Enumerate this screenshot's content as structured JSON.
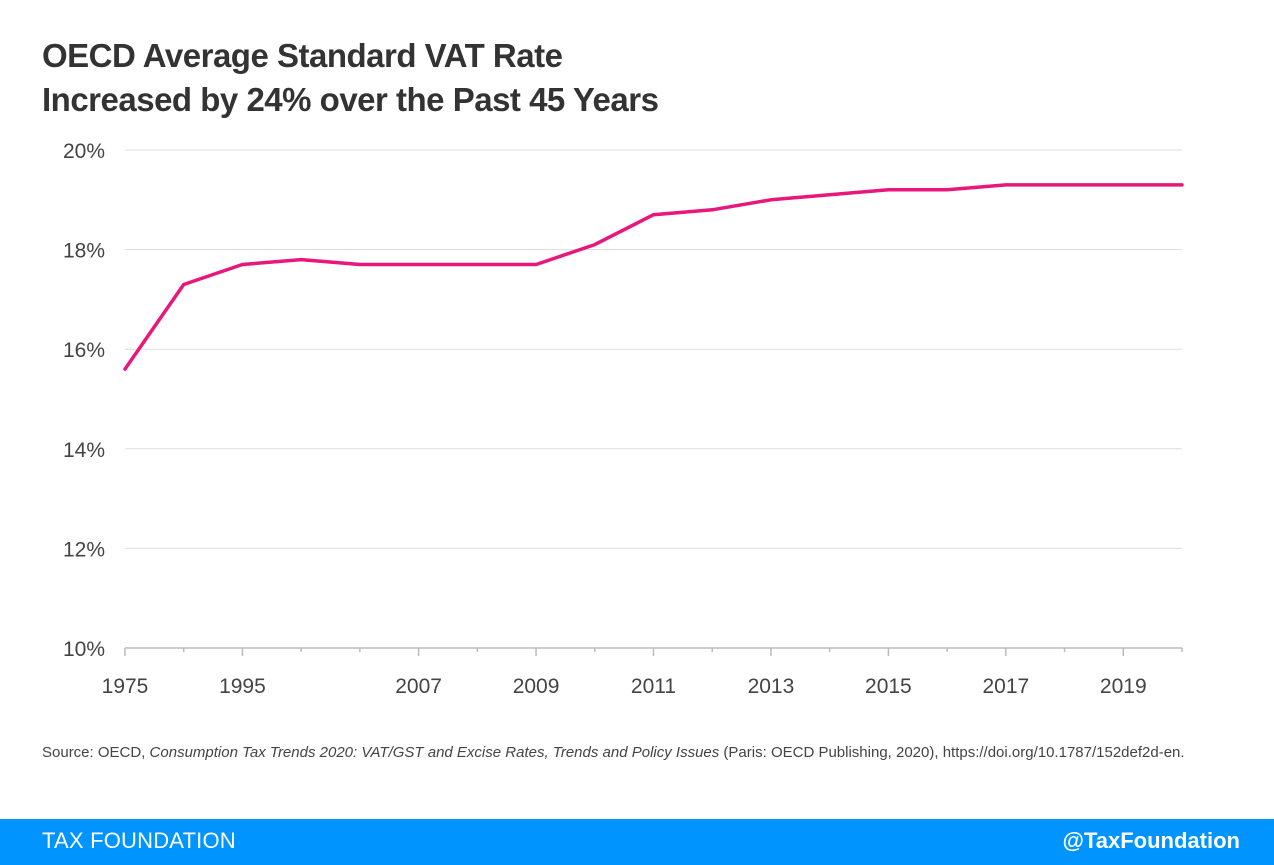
{
  "title_lines": [
    "OECD Average Standard VAT Rate",
    "Increased by 24% over the Past 45 Years"
  ],
  "source": {
    "prefix": "Source:  OECD, ",
    "work": "Consumption Tax Trends 2020: VAT/GST and Excise Rates, Trends and Policy Issues",
    "suffix": " (Paris: OECD Publishing, 2020), https://doi.org/10.1787/152def2d-en."
  },
  "footer": {
    "left": "TAX FOUNDATION",
    "right": "@TaxFoundation"
  },
  "colors": {
    "line": "#e8177b",
    "grid": "#dddddd",
    "axis": "#bbbbbb",
    "footer": "#0094ff"
  },
  "chart_data": {
    "type": "line",
    "x": [
      "1975",
      "1984",
      "1995",
      "2000",
      "2005",
      "2007",
      "2008",
      "2009",
      "2010",
      "2011",
      "2012",
      "2013",
      "2014",
      "2015",
      "2016",
      "2017",
      "2018",
      "2019",
      "2020"
    ],
    "series": [
      {
        "values": [
          15.6,
          17.3,
          17.7,
          17.8,
          17.7,
          17.7,
          17.7,
          17.7,
          18.1,
          18.7,
          18.8,
          19.0,
          19.1,
          19.2,
          19.2,
          19.3,
          19.3,
          19.3,
          19.3
        ]
      }
    ],
    "x_tick_labels": [
      "1975",
      "1995",
      "2007",
      "2009",
      "2011",
      "2013",
      "2015",
      "2017",
      "2019"
    ],
    "y_ticks": [
      10,
      12,
      14,
      16,
      18,
      20
    ],
    "y_tick_labels": [
      "10%",
      "12%",
      "14%",
      "16%",
      "18%",
      "20%"
    ],
    "ylim": [
      10,
      20
    ],
    "grid": true,
    "legend": "none"
  }
}
